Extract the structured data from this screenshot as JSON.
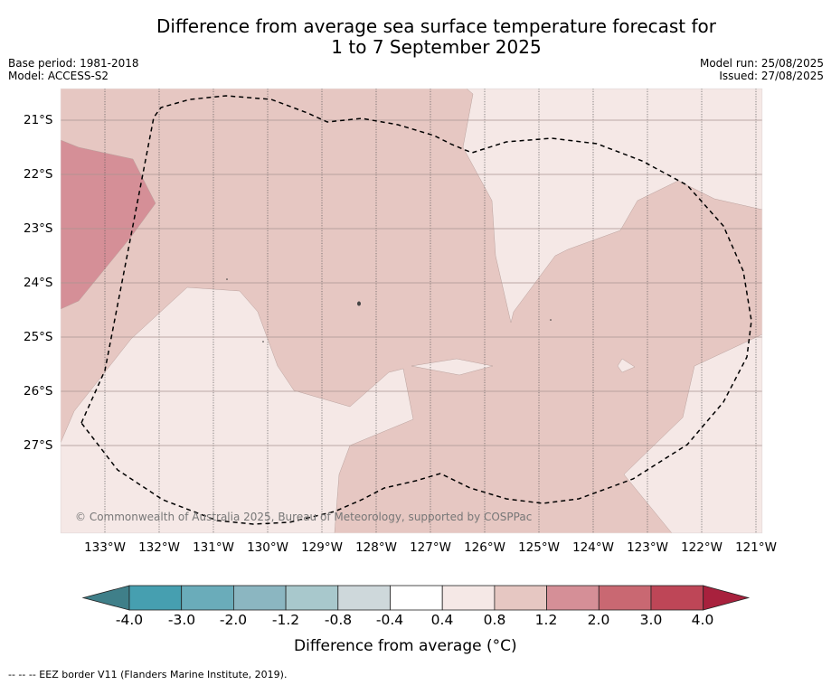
{
  "header": {
    "title": "Difference from average sea surface temperature forecast for\n1 to 7 September 2025",
    "base_period": "Base period: 1981-2018",
    "model": "Model: ACCESS-S2",
    "model_run": "Model run: 25/08/2025",
    "issued": "Issued: 27/08/2025"
  },
  "map": {
    "latitudes": [
      "21°S",
      "22°S",
      "23°S",
      "24°S",
      "25°S",
      "26°S",
      "27°S"
    ],
    "longitudes": [
      "133°W",
      "132°W",
      "131°W",
      "130°W",
      "129°W",
      "128°W",
      "127°W",
      "126°W",
      "125°W",
      "124°W",
      "123°W",
      "122°W",
      "121°W"
    ],
    "copyright": "© Commonwealth of Australia 2025, Bureau of Meteorology, supported by COSPPac",
    "region_colors": {
      "very_light": "#f5e8e6",
      "light": "#e6c7c2",
      "medium": "#d58f97"
    }
  },
  "colorbar": {
    "labels": [
      "-4.0",
      "-3.0",
      "-2.0",
      "-1.2",
      "-0.8",
      "-0.4",
      "0.4",
      "0.8",
      "1.2",
      "2.0",
      "3.0",
      "4.0"
    ],
    "colors": [
      "#3f7f89",
      "#469fb0",
      "#6aacba",
      "#8bb6c1",
      "#a8c8cc",
      "#ced8db",
      "#ffffff",
      "#f5e8e6",
      "#e6c7c2",
      "#d58f97",
      "#c96872",
      "#be4657",
      "#a8213d"
    ],
    "title": "Difference from average (°C)"
  },
  "footnote": "--  --  -- EEZ border V11 (Flanders Marine Institute, 2019)."
}
